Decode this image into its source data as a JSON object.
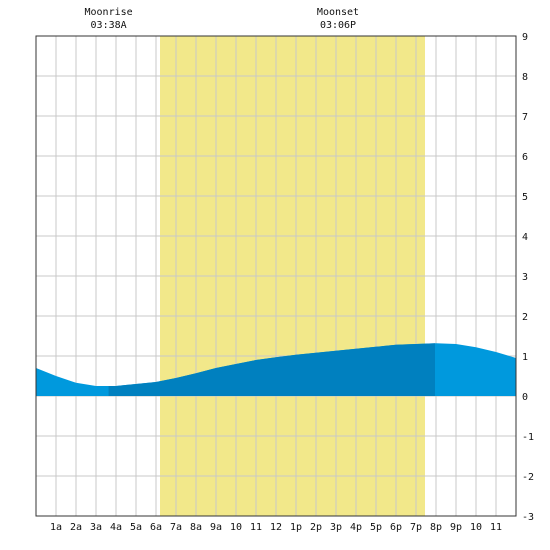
{
  "chart_data": {
    "type": "area",
    "title": "",
    "xlabel": "",
    "ylabel": "",
    "xlim": [
      0,
      24
    ],
    "ylim": [
      -3,
      9
    ],
    "grid": true,
    "x_tick_labels": [
      "1a",
      "2a",
      "3a",
      "4a",
      "5a",
      "6a",
      "7a",
      "8a",
      "9a",
      "10",
      "11",
      "12",
      "1p",
      "2p",
      "3p",
      "4p",
      "5p",
      "6p",
      "7p",
      "8p",
      "9p",
      "10",
      "11"
    ],
    "y_ticks": [
      -3,
      -2,
      -1,
      0,
      1,
      2,
      3,
      4,
      5,
      6,
      7,
      8,
      9
    ],
    "daylight": {
      "start_hour": 6.2,
      "end_hour": 19.45
    },
    "moon_events": [
      {
        "label": "Moonrise",
        "time": "03:38A",
        "hour": 3.63
      },
      {
        "label": "Moonset",
        "time": "03:06P",
        "hour": 15.1
      }
    ],
    "series": [
      {
        "x": [
          0,
          1,
          2,
          3,
          4,
          5,
          6,
          7,
          8,
          9,
          10,
          11,
          12,
          13,
          14,
          15,
          16,
          17,
          18,
          19,
          20,
          21,
          22,
          23,
          24
        ],
        "values": [
          0.7,
          0.5,
          0.33,
          0.25,
          0.25,
          0.3,
          0.35,
          0.45,
          0.57,
          0.7,
          0.8,
          0.9,
          0.97,
          1.03,
          1.08,
          1.13,
          1.18,
          1.23,
          1.28,
          1.3,
          1.32,
          1.3,
          1.22,
          1.1,
          0.95
        ]
      }
    ],
    "colors": {
      "daylight": "#f2e88a",
      "tide": "#0099dd",
      "tide_shaded": "#0080bf",
      "grid": "#c8c8c8",
      "frame": "#333333"
    }
  }
}
